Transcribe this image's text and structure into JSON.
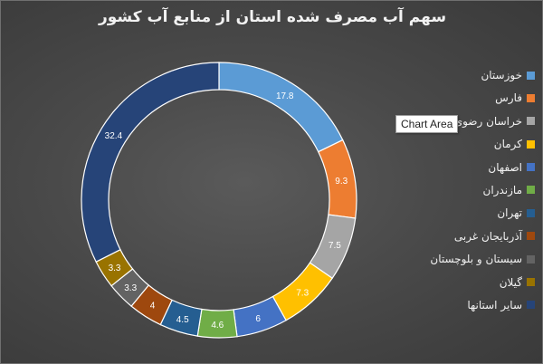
{
  "chart_data": {
    "type": "pie",
    "title": "سهم آب مصرف شده استان از منابع آب کشور",
    "categories": [
      "خوزستان",
      "فارس",
      "خراسان رضوی",
      "کرمان",
      "اصفهان",
      "مازندران",
      "تهران",
      "آذربایجان غربی",
      "سیستان و بلوچستان",
      "گیلان",
      "سایر استانها"
    ],
    "values": [
      17.8,
      9.3,
      7.5,
      7.3,
      6,
      4.6,
      4.5,
      4,
      3.3,
      3.3,
      32.4
    ],
    "data_labels": [
      "17.8",
      "9.3",
      "7.5",
      "7.3",
      "6",
      "4.6",
      "4.5",
      "4",
      "3.3",
      "3.3",
      "32.4"
    ],
    "colors": [
      "#5b9bd5",
      "#ed7d31",
      "#a5a5a5",
      "#ffc000",
      "#4472c4",
      "#70ad47",
      "#255e91",
      "#9e480e",
      "#636363",
      "#997300",
      "#264478"
    ],
    "legend_position": "right",
    "style": "doughnut"
  },
  "tooltip": {
    "text": "Chart Area"
  }
}
